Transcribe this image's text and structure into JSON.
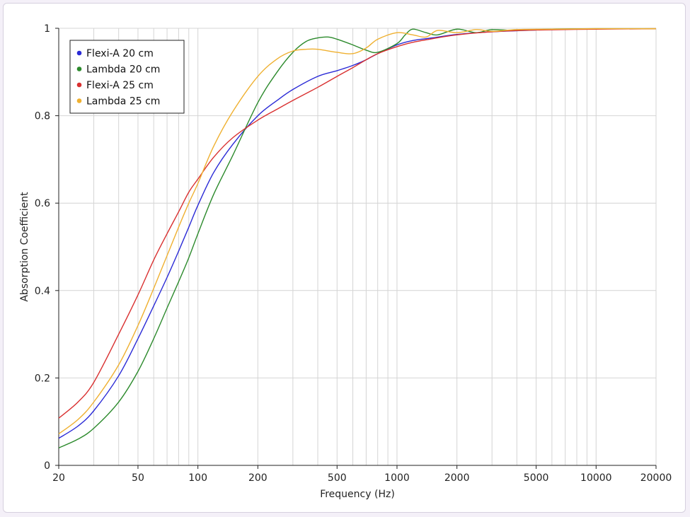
{
  "chart_data": {
    "type": "line",
    "title": "",
    "xlabel": "Frequency (Hz)",
    "ylabel": "Absorption Coefficient",
    "xscale": "log",
    "xlim": [
      20,
      20000
    ],
    "ylim": [
      0,
      1
    ],
    "grid": true,
    "legend_position": "top-left",
    "x_ticks": [
      20,
      50,
      100,
      200,
      500,
      1000,
      2000,
      5000,
      10000,
      20000
    ],
    "x_tick_labels": [
      "20",
      "50",
      "100",
      "200",
      "500",
      "1000",
      "2000",
      "5000",
      "10000",
      "20000"
    ],
    "y_ticks": [
      0,
      0.2,
      0.4,
      0.6,
      0.8,
      1
    ],
    "y_tick_labels": [
      "0",
      "0.2",
      "0.4",
      "0.6",
      "0.8",
      "1"
    ],
    "series": [
      {
        "name": "Flexi-A 20 cm",
        "color": "#2a2ad6",
        "points": [
          [
            20,
            0.062
          ],
          [
            25,
            0.09
          ],
          [
            30,
            0.125
          ],
          [
            40,
            0.205
          ],
          [
            50,
            0.29
          ],
          [
            60,
            0.365
          ],
          [
            70,
            0.43
          ],
          [
            80,
            0.49
          ],
          [
            90,
            0.545
          ],
          [
            100,
            0.595
          ],
          [
            120,
            0.67
          ],
          [
            150,
            0.735
          ],
          [
            200,
            0.8
          ],
          [
            250,
            0.835
          ],
          [
            300,
            0.86
          ],
          [
            400,
            0.89
          ],
          [
            500,
            0.903
          ],
          [
            600,
            0.915
          ],
          [
            700,
            0.928
          ],
          [
            800,
            0.942
          ],
          [
            1000,
            0.962
          ],
          [
            1200,
            0.972
          ],
          [
            1500,
            0.978
          ],
          [
            2000,
            0.986
          ],
          [
            3000,
            0.992
          ],
          [
            5000,
            0.996
          ]
        ]
      },
      {
        "name": "Lambda 20 cm",
        "color": "#2c8a2c",
        "points": [
          [
            20,
            0.04
          ],
          [
            25,
            0.06
          ],
          [
            30,
            0.085
          ],
          [
            40,
            0.145
          ],
          [
            50,
            0.215
          ],
          [
            60,
            0.29
          ],
          [
            70,
            0.36
          ],
          [
            80,
            0.42
          ],
          [
            90,
            0.475
          ],
          [
            100,
            0.53
          ],
          [
            120,
            0.62
          ],
          [
            150,
            0.71
          ],
          [
            200,
            0.83
          ],
          [
            250,
            0.9
          ],
          [
            300,
            0.945
          ],
          [
            350,
            0.97
          ],
          [
            400,
            0.978
          ],
          [
            450,
            0.98
          ],
          [
            500,
            0.975
          ],
          [
            600,
            0.962
          ],
          [
            700,
            0.95
          ],
          [
            800,
            0.945
          ],
          [
            1000,
            0.965
          ],
          [
            1100,
            0.985
          ],
          [
            1200,
            0.998
          ],
          [
            1400,
            0.99
          ],
          [
            1600,
            0.985
          ],
          [
            2000,
            0.998
          ],
          [
            2500,
            0.99
          ],
          [
            3000,
            0.997
          ],
          [
            4000,
            0.995
          ],
          [
            6000,
            0.998
          ],
          [
            10000,
            0.999
          ],
          [
            20000,
            0.999
          ]
        ]
      },
      {
        "name": "Flexi-A 25 cm",
        "color": "#d93030",
        "points": [
          [
            20,
            0.108
          ],
          [
            25,
            0.145
          ],
          [
            30,
            0.19
          ],
          [
            40,
            0.3
          ],
          [
            50,
            0.39
          ],
          [
            60,
            0.47
          ],
          [
            70,
            0.53
          ],
          [
            80,
            0.58
          ],
          [
            90,
            0.625
          ],
          [
            100,
            0.655
          ],
          [
            120,
            0.705
          ],
          [
            150,
            0.75
          ],
          [
            200,
            0.79
          ],
          [
            250,
            0.815
          ],
          [
            300,
            0.835
          ],
          [
            400,
            0.865
          ],
          [
            500,
            0.89
          ],
          [
            600,
            0.91
          ],
          [
            700,
            0.928
          ],
          [
            800,
            0.942
          ],
          [
            1000,
            0.958
          ],
          [
            1200,
            0.968
          ],
          [
            1500,
            0.976
          ],
          [
            2000,
            0.985
          ],
          [
            3000,
            0.992
          ],
          [
            5000,
            0.996
          ],
          [
            10000,
            0.998
          ],
          [
            20000,
            0.999
          ]
        ]
      },
      {
        "name": "Lambda 25 cm",
        "color": "#efb030",
        "points": [
          [
            20,
            0.072
          ],
          [
            25,
            0.105
          ],
          [
            30,
            0.145
          ],
          [
            40,
            0.23
          ],
          [
            50,
            0.32
          ],
          [
            60,
            0.405
          ],
          [
            70,
            0.48
          ],
          [
            80,
            0.545
          ],
          [
            90,
            0.6
          ],
          [
            100,
            0.645
          ],
          [
            120,
            0.73
          ],
          [
            150,
            0.81
          ],
          [
            200,
            0.89
          ],
          [
            250,
            0.93
          ],
          [
            300,
            0.948
          ],
          [
            350,
            0.952
          ],
          [
            400,
            0.952
          ],
          [
            500,
            0.945
          ],
          [
            600,
            0.942
          ],
          [
            700,
            0.955
          ],
          [
            800,
            0.975
          ],
          [
            1000,
            0.99
          ],
          [
            1200,
            0.985
          ],
          [
            1400,
            0.98
          ],
          [
            1600,
            0.995
          ],
          [
            2000,
            0.99
          ],
          [
            2500,
            0.997
          ],
          [
            3000,
            0.993
          ],
          [
            4000,
            0.997
          ],
          [
            6000,
            0.998
          ],
          [
            10000,
            0.999
          ],
          [
            20000,
            0.999
          ]
        ]
      }
    ]
  }
}
